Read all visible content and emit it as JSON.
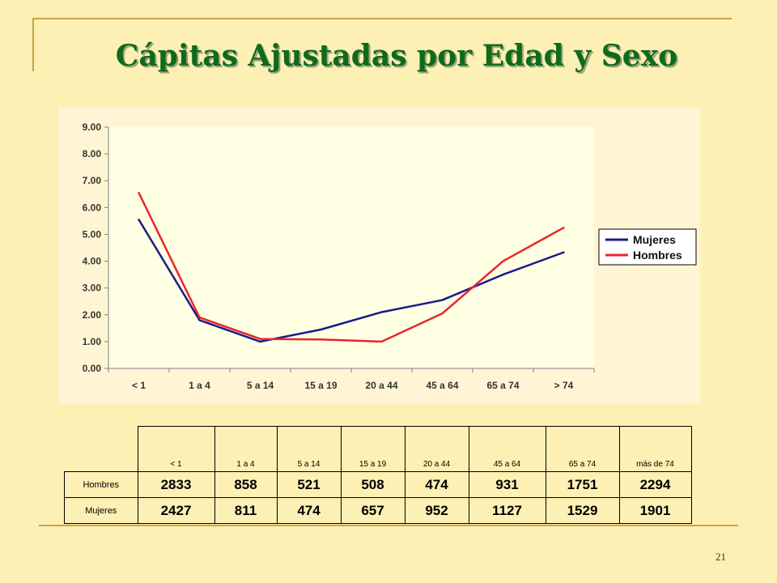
{
  "slide": {
    "title": "Cápitas Ajustadas por Edad y Sexo",
    "page_number": "21"
  },
  "colors": {
    "mujeres": "#1a1a8a",
    "hombres": "#e8262a",
    "title": "#0d6b1a"
  },
  "chart_data": {
    "type": "line",
    "categories": [
      "< 1",
      "1 a 4",
      "5 a 14",
      "15 a 19",
      "20 a 44",
      "45 a 64",
      "65 a 74",
      "> 74"
    ],
    "ylim": [
      0,
      9
    ],
    "yticks": [
      "0.00",
      "1.00",
      "2.00",
      "3.00",
      "4.00",
      "5.00",
      "6.00",
      "7.00",
      "8.00",
      "9.00"
    ],
    "grid": false,
    "legend": "right",
    "series": [
      {
        "name": "Mujeres",
        "color": "#1a1a8a",
        "values": [
          5.55,
          1.8,
          1.0,
          1.45,
          2.1,
          2.55,
          3.5,
          4.33
        ]
      },
      {
        "name": "Hombres",
        "color": "#e8262a",
        "values": [
          6.55,
          1.9,
          1.1,
          1.08,
          1.0,
          2.05,
          4.0,
          5.25
        ]
      }
    ]
  },
  "table": {
    "headers": [
      "< 1",
      "1 a 4",
      "5 a 14",
      "15 a 19",
      "20 a 44",
      "45 a 64",
      "65 a 74",
      "más de 74"
    ],
    "rows": [
      {
        "label": "Hombres",
        "values": [
          "2833",
          "858",
          "521",
          "508",
          "474",
          "931",
          "1751",
          "2294"
        ]
      },
      {
        "label": "Mujeres",
        "values": [
          "2427",
          "811",
          "474",
          "657",
          "952",
          "1127",
          "1529",
          "1901"
        ]
      }
    ]
  }
}
